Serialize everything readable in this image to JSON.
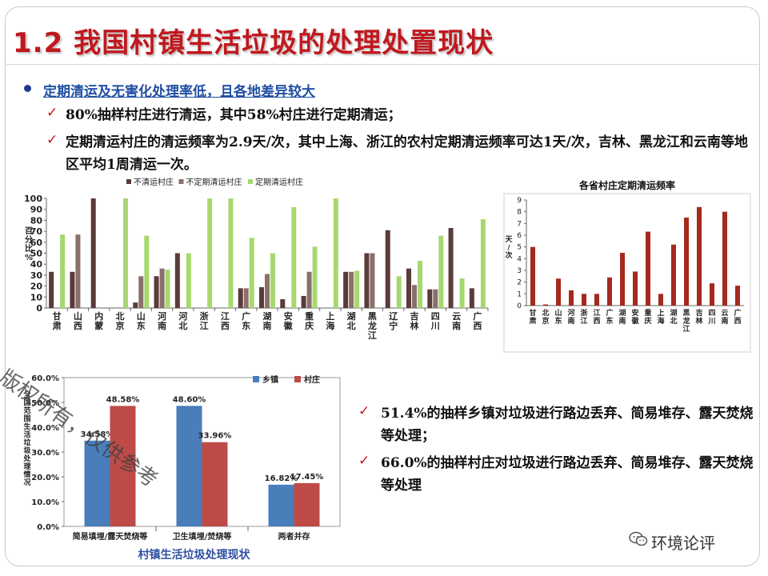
{
  "slide": {
    "title": "1.2 我国村镇生活垃圾的处理处置现状",
    "headline": "定期清运及无害化处理率低，且各地差异较大",
    "bullets_top": [
      "80%抽样村庄进行清运，其中58%村庄进行定期清运；",
      "定期清运村庄的清运频率为2.9天/次，其中上海、浙江的农村定期清运频率可达1天/次，吉林、黑龙江和云南等地区平均1周清运一次。"
    ],
    "bullets_bottom": [
      "51.4%的抽样乡镇对垃圾进行路边丢弃、简易堆存、露天焚烧等处理；",
      "66.0%的抽样村庄对垃圾进行路边丢弃、简易堆存、露天焚烧等处理"
    ],
    "check_icon": "check-mark-icon",
    "watermark": "版权所有，仅供参考",
    "brand": "环境论评",
    "brand_icon": "wechat-icon",
    "colors": {
      "title": "#c0181e",
      "headline": "#1f4fa3",
      "check": "#c0181e"
    }
  },
  "chart_data": [
    {
      "type": "bar",
      "title": "",
      "ylabel": "百分比%",
      "ylim": [
        0,
        100
      ],
      "yticks": [
        0,
        10,
        20,
        30,
        40,
        50,
        60,
        70,
        80,
        90,
        100
      ],
      "legend_position": "top",
      "categories": [
        "甘肃",
        "山西",
        "内蒙",
        "北京",
        "山东",
        "河南",
        "河北",
        "浙江",
        "江西",
        "广东",
        "湖南",
        "安徽",
        "重庆",
        "上海",
        "湖北",
        "黑龙江",
        "辽宁",
        "吉林",
        "四川",
        "云南",
        "广西"
      ],
      "series": [
        {
          "name": "不清运村庄",
          "color": "#5b3a3a",
          "values": [
            33,
            33,
            100,
            0,
            5,
            29,
            50,
            0,
            0,
            18,
            19,
            8,
            11,
            0,
            33,
            50,
            71,
            36,
            17,
            73,
            18
          ]
        },
        {
          "name": "不定期清运村庄",
          "color": "#8b6f6a",
          "values": [
            0,
            67,
            0,
            0,
            29,
            36,
            0,
            0,
            0,
            18,
            31,
            0,
            33,
            0,
            33,
            50,
            0,
            21,
            17,
            0,
            0
          ]
        },
        {
          "name": "定期清运村庄",
          "color": "#a6d86f",
          "values": [
            67,
            0,
            0,
            100,
            66,
            35,
            50,
            100,
            100,
            64,
            50,
            92,
            56,
            100,
            34,
            0,
            29,
            43,
            66,
            27,
            81
          ]
        }
      ]
    },
    {
      "type": "bar",
      "title": "各省村庄定期清运频率",
      "ylabel": "天/次",
      "ylim": [
        0,
        9
      ],
      "yticks": [
        0,
        1,
        2,
        3,
        4,
        5,
        6,
        7,
        8,
        9
      ],
      "color": "#a52a1e",
      "categories": [
        "甘肃",
        "北京",
        "山东",
        "河南",
        "浙江",
        "江西",
        "广东",
        "湖南",
        "安徽",
        "重庆",
        "上海",
        "湖北",
        "黑龙江",
        "吉林",
        "四川",
        "云南",
        "广西"
      ],
      "values": [
        5.0,
        0.1,
        2.3,
        1.3,
        1.0,
        1.0,
        2.4,
        4.5,
        2.9,
        6.3,
        1.0,
        5.2,
        7.5,
        8.4,
        1.9,
        8.0,
        1.7
      ]
    },
    {
      "type": "bar",
      "title": "村镇生活垃圾处理现状",
      "ylabel": "全国范围生活垃圾处理情况",
      "ylim": [
        0,
        60
      ],
      "yticks": [
        "0.0%",
        "10.0%",
        "20.0%",
        "30.0%",
        "40.0%",
        "50.0%",
        "60.0%"
      ],
      "legend_position": "top-right",
      "categories": [
        "简易填埋/露天焚烧等",
        "卫生填埋/焚烧等",
        "两者并存"
      ],
      "series": [
        {
          "name": "乡镇",
          "color": "#4a7ebb",
          "values": [
            34.58,
            48.6,
            16.82
          ],
          "labels": [
            "34.58%",
            "48.60%",
            "16.82%"
          ]
        },
        {
          "name": "村庄",
          "color": "#be4b48",
          "values": [
            48.58,
            33.96,
            17.45
          ],
          "labels": [
            "48.58%",
            "33.96%",
            "17.45%"
          ]
        }
      ]
    }
  ]
}
